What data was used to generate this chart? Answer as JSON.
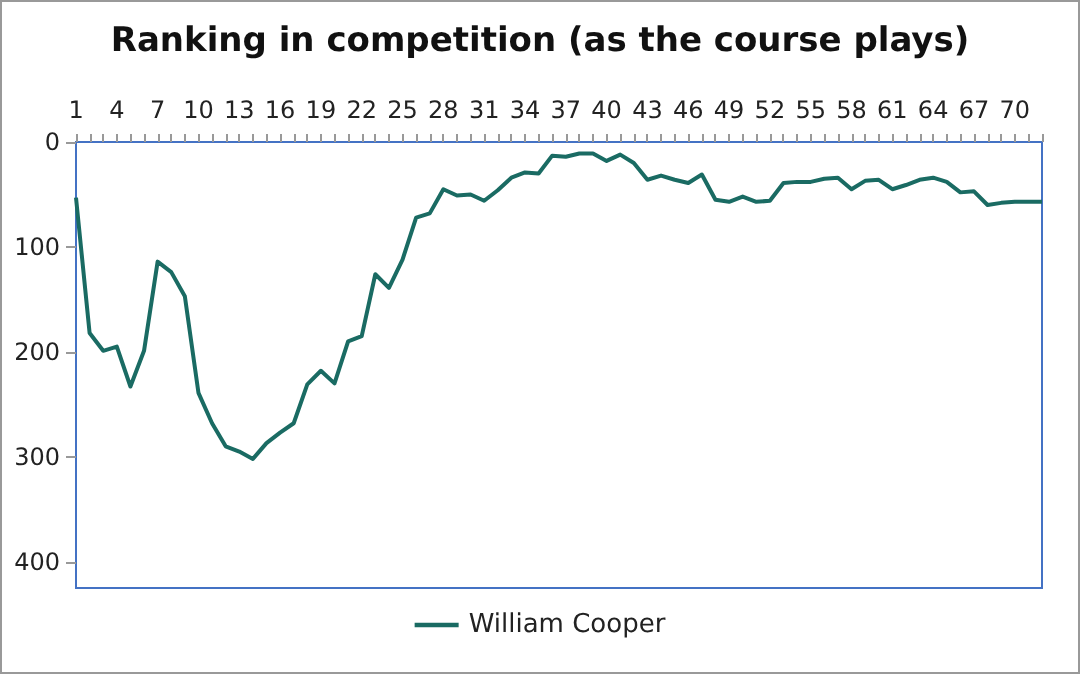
{
  "chart_data": {
    "type": "line",
    "title": "Ranking in competition (as the course plays)",
    "categories": [
      "1",
      null,
      null,
      "4",
      null,
      null,
      "7",
      null,
      null,
      "10",
      null,
      null,
      "13",
      null,
      null,
      "16",
      null,
      null,
      "19",
      null,
      null,
      "22",
      null,
      null,
      "25",
      null,
      null,
      "28",
      null,
      null,
      "31",
      null,
      null,
      "34",
      null,
      null,
      "37",
      null,
      null,
      "40",
      null,
      null,
      "43",
      null,
      null,
      "46",
      null,
      null,
      "49",
      null,
      null,
      "52",
      null,
      null,
      "55",
      null,
      null,
      "58",
      null,
      null,
      "61",
      null,
      null,
      "64",
      null,
      null,
      "67",
      null,
      null,
      "70",
      null,
      null
    ],
    "series": [
      {
        "name": "William Cooper",
        "color": "#1a6b63",
        "values": [
          53,
          182,
          199,
          195,
          233,
          199,
          114,
          124,
          147,
          239,
          268,
          290,
          295,
          302,
          287,
          277,
          268,
          231,
          218,
          230,
          190,
          185,
          126,
          139,
          112,
          72,
          68,
          45,
          51,
          50,
          56,
          46,
          34,
          29,
          30,
          13,
          14,
          11,
          11,
          18,
          12,
          20,
          36,
          32,
          36,
          39,
          31,
          55,
          57,
          52,
          57,
          56,
          39,
          38,
          38,
          35,
          34,
          45,
          37,
          36,
          45,
          41,
          36,
          34,
          38,
          48,
          47,
          60,
          58,
          57,
          57,
          57
        ]
      }
    ],
    "ylim": [
      425,
      0
    ],
    "yticks": [
      0,
      100,
      200,
      300,
      400
    ],
    "grid": false,
    "legend": "bottom",
    "marker": "none",
    "line_style": "solid"
  }
}
